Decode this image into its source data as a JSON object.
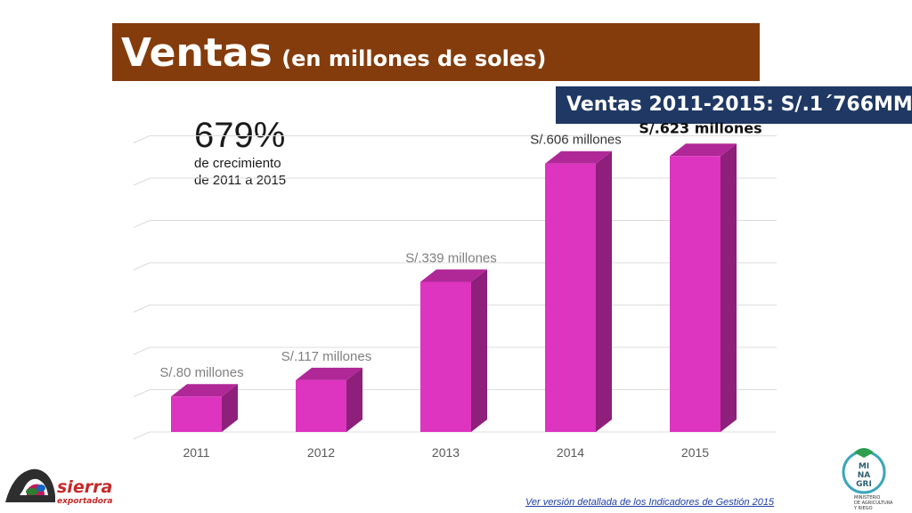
{
  "title": {
    "main": "Ventas",
    "sub": "(en millones de soles)"
  },
  "total_box": "Ventas 2011-2015: S/.1´766MM",
  "growth": {
    "percent": "679%",
    "line1": "de crecimiento",
    "line2": "de 2011 a 2015"
  },
  "link_text": "Ver versión detallada de los Indicadores de Gestión 2015",
  "logos": {
    "sierra": {
      "line1": "sierra",
      "line2": "exportadora"
    },
    "minagri": {
      "l1": "MI",
      "l2": "NA",
      "l3": "GRI",
      "t1": "MINISTERIO",
      "t2": "DE AGRICULTURA",
      "t3": "Y RIEGO"
    }
  },
  "colors": {
    "bar_front": "#dd35c0",
    "bar_top": "#b02898",
    "bar_side": "#8e1f7a",
    "title_bg": "#843c0c",
    "total_bg": "#1f3864"
  },
  "chart_data": {
    "type": "bar",
    "categories": [
      "2011",
      "2012",
      "2013",
      "2014",
      "2015"
    ],
    "values": [
      80,
      117,
      339,
      606,
      623
    ],
    "data_labels": [
      "S/.80 millones",
      "S/.117 millones",
      "S/.339 millones",
      "S/.606 millones",
      "S/.623 millones"
    ],
    "ylim": [
      0,
      700
    ],
    "grid": true
  }
}
